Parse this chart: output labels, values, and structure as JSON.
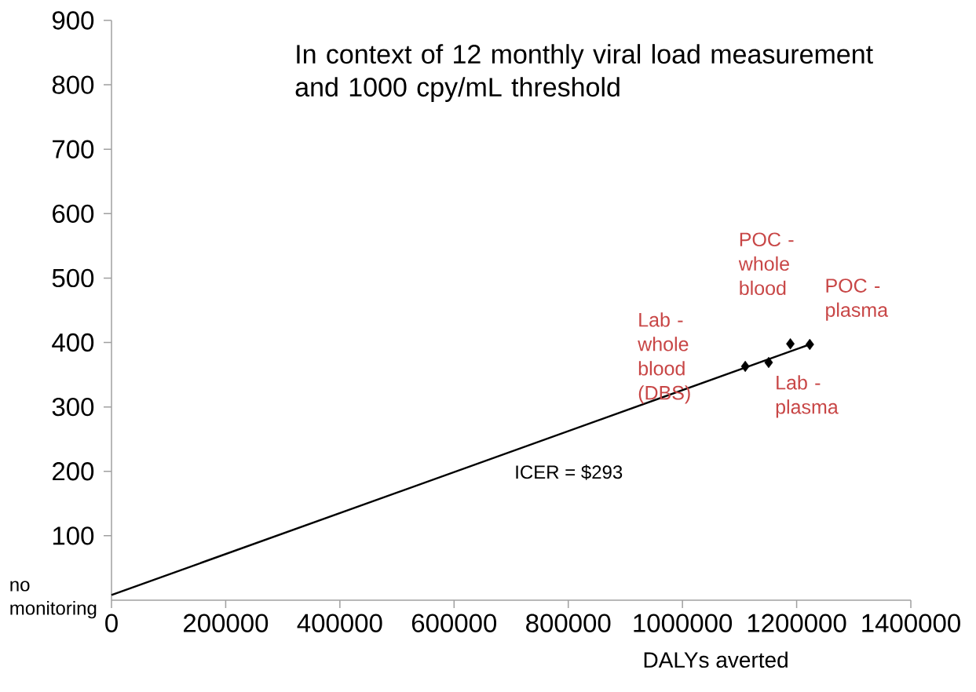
{
  "chart_data": {
    "type": "scatter",
    "xlabel": "DALYs averted",
    "xlim": [
      0,
      1400000
    ],
    "ylim": [
      0,
      900
    ],
    "xticks": [
      0,
      200000,
      400000,
      600000,
      800000,
      1000000,
      1200000,
      1400000
    ],
    "yticks": [
      100,
      200,
      300,
      400,
      500,
      600,
      700,
      800,
      900
    ],
    "grid": false,
    "series": [
      {
        "type": "line",
        "marker": "none",
        "color": "#000000",
        "x": [
          0,
          1223000
        ],
        "values": [
          8,
          397
        ]
      },
      {
        "marker": "diamond",
        "color": "#000000",
        "x": [
          1110000,
          1151000,
          1189000,
          1223000
        ],
        "values": [
          363,
          369,
          398,
          397
        ]
      }
    ],
    "annotations": [
      "In context of 12 monthly viral load measurement and 1000 cpy/mL threshold",
      "ICER = $293",
      {
        "text": "no monitoring",
        "x": 0,
        "y": 8
      },
      "Lab - whole blood (DBS)",
      {
        "text": "Lab - plasma",
        "x": 1151000,
        "y": 369
      },
      {
        "text": "POC - whole blood",
        "x": 1189000,
        "y": 398
      },
      {
        "text": "POC - plasma",
        "x": 1223000,
        "y": 397
      }
    ]
  }
}
